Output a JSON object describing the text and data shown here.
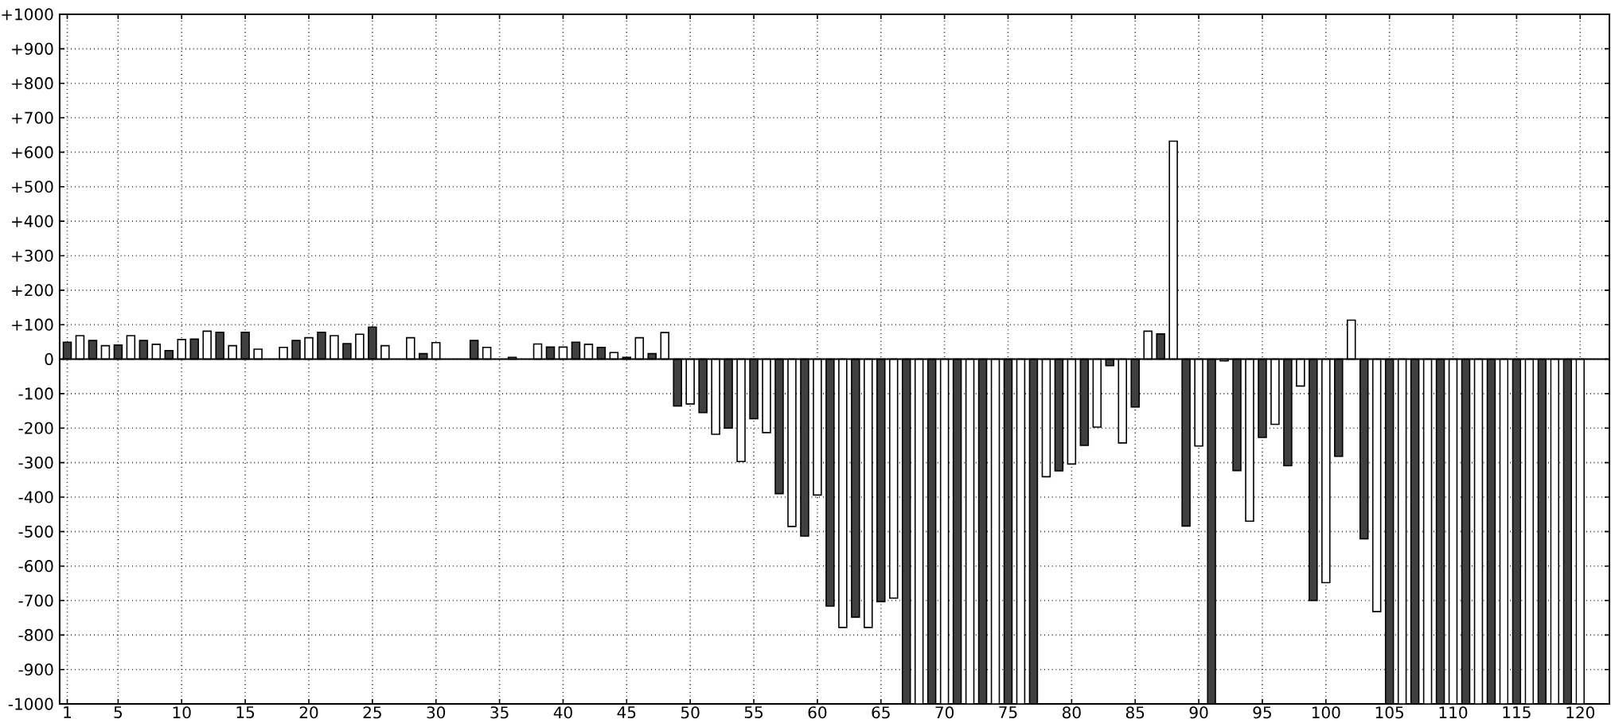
{
  "chart_data": {
    "type": "bar",
    "x": [
      1,
      2,
      3,
      4,
      5,
      6,
      7,
      8,
      9,
      10,
      11,
      12,
      13,
      14,
      15,
      16,
      17,
      18,
      19,
      20,
      21,
      22,
      23,
      24,
      25,
      26,
      27,
      28,
      29,
      30,
      31,
      32,
      33,
      34,
      35,
      36,
      37,
      38,
      39,
      40,
      41,
      42,
      43,
      44,
      45,
      46,
      47,
      48,
      49,
      50,
      51,
      52,
      53,
      54,
      55,
      56,
      57,
      58,
      59,
      60,
      61,
      62,
      63,
      64,
      65,
      66,
      67,
      68,
      69,
      70,
      71,
      72,
      73,
      74,
      75,
      76,
      77,
      78,
      79,
      80,
      81,
      82,
      83,
      84,
      85,
      86,
      87,
      88,
      89,
      90,
      91,
      92,
      93,
      94,
      95,
      96,
      97,
      98,
      99,
      100,
      101,
      102,
      103,
      104,
      105,
      106,
      107,
      108,
      109,
      110,
      111,
      112,
      113,
      114,
      115,
      116,
      117,
      118,
      119,
      120
    ],
    "values": [
      49,
      68,
      54,
      39,
      41,
      68,
      54,
      43,
      25,
      57,
      58,
      81,
      78,
      39,
      78,
      29,
      null,
      34,
      54,
      62,
      78,
      68,
      45,
      72,
      93,
      39,
      null,
      62,
      16,
      48,
      null,
      null,
      54,
      34,
      null,
      5,
      null,
      44,
      35,
      35,
      49,
      43,
      34,
      19,
      5,
      62,
      16,
      77,
      -136,
      -130,
      -155,
      -218,
      -200,
      -297,
      -173,
      -213,
      -390,
      -485,
      -513,
      -394,
      -716,
      -778,
      -748,
      -778,
      -703,
      -693,
      -1000,
      -1000,
      -1000,
      -1000,
      -1000,
      -1000,
      -1000,
      -1000,
      -1000,
      -1000,
      -1000,
      -341,
      -324,
      -304,
      -250,
      -197,
      -19,
      -243,
      -139,
      81,
      73,
      632,
      -484,
      -252,
      -1000,
      -5,
      -323,
      -470,
      -227,
      -189,
      -309,
      -78,
      -700,
      -648,
      -282,
      113,
      -521,
      -732,
      -1000,
      -1000,
      -1000,
      -1000,
      -1000,
      -1000,
      -1000,
      -1000,
      -1000,
      -1000,
      -1000,
      -1000,
      -1000,
      -1000,
      -1000,
      -1000
    ],
    "colors": [
      "#404040",
      "#ffffff",
      "#404040",
      "#ffffff",
      "#404040",
      "#ffffff",
      "#404040",
      "#ffffff",
      "#404040",
      "#ffffff",
      "#404040",
      "#ffffff",
      "#404040",
      "#ffffff",
      "#404040",
      "#ffffff",
      "#404040",
      "#ffffff",
      "#404040",
      "#ffffff",
      "#404040",
      "#ffffff",
      "#404040",
      "#ffffff",
      "#404040",
      "#ffffff",
      "#404040",
      "#ffffff",
      "#404040",
      "#ffffff",
      "#404040",
      "#ffffff",
      "#404040",
      "#ffffff",
      "#404040",
      "#ffffff",
      "#404040",
      "#ffffff",
      "#404040",
      "#ffffff",
      "#404040",
      "#ffffff",
      "#404040",
      "#ffffff",
      "#404040",
      "#ffffff",
      "#404040",
      "#ffffff",
      "#404040",
      "#ffffff",
      "#404040",
      "#ffffff",
      "#404040",
      "#ffffff",
      "#404040",
      "#ffffff",
      "#404040",
      "#ffffff",
      "#404040",
      "#ffffff",
      "#404040",
      "#ffffff",
      "#404040",
      "#ffffff",
      "#404040",
      "#ffffff",
      "#404040",
      "#ffffff",
      "#404040",
      "#ffffff",
      "#404040",
      "#ffffff",
      "#404040",
      "#ffffff",
      "#404040",
      "#ffffff",
      "#404040",
      "#ffffff",
      "#404040",
      "#ffffff",
      "#404040",
      "#ffffff",
      "#404040",
      "#ffffff",
      "#404040",
      "#ffffff",
      "#404040",
      "#ffffff",
      "#404040",
      "#ffffff",
      "#404040",
      "#ffffff",
      "#404040",
      "#ffffff",
      "#404040",
      "#ffffff",
      "#404040",
      "#ffffff",
      "#404040",
      "#ffffff",
      "#404040",
      "#ffffff",
      "#404040",
      "#ffffff",
      "#404040",
      "#ffffff",
      "#404040",
      "#ffffff",
      "#404040",
      "#ffffff",
      "#404040",
      "#ffffff",
      "#404040",
      "#ffffff",
      "#404040",
      "#ffffff",
      "#404040",
      "#ffffff",
      "#404040",
      "#ffffff"
    ],
    "xlim": [
      0.4,
      122.3
    ],
    "xticks": [
      1,
      5,
      10,
      15,
      20,
      25,
      30,
      35,
      40,
      45,
      50,
      55,
      60,
      65,
      70,
      75,
      80,
      85,
      90,
      95,
      100,
      105,
      110,
      115,
      120
    ],
    "ylim": [
      -1000,
      1000
    ],
    "yticks": [
      -1000,
      -900,
      -800,
      -700,
      -600,
      -500,
      -400,
      -300,
      -200,
      -100,
      0,
      {
        "value": 100,
        "label": "+100"
      },
      {
        "value": 200,
        "label": "+200"
      },
      {
        "value": 300,
        "label": "+300"
      },
      {
        "value": 400,
        "label": "+400"
      },
      {
        "value": 500,
        "label": "+500"
      },
      {
        "value": 600,
        "label": "+600"
      },
      {
        "value": 700,
        "label": "+700"
      },
      {
        "value": 800,
        "label": "+800"
      },
      {
        "value": 900,
        "label": "+900"
      },
      {
        "value": 1000,
        "label": "+1000"
      }
    ],
    "grid": true
  }
}
